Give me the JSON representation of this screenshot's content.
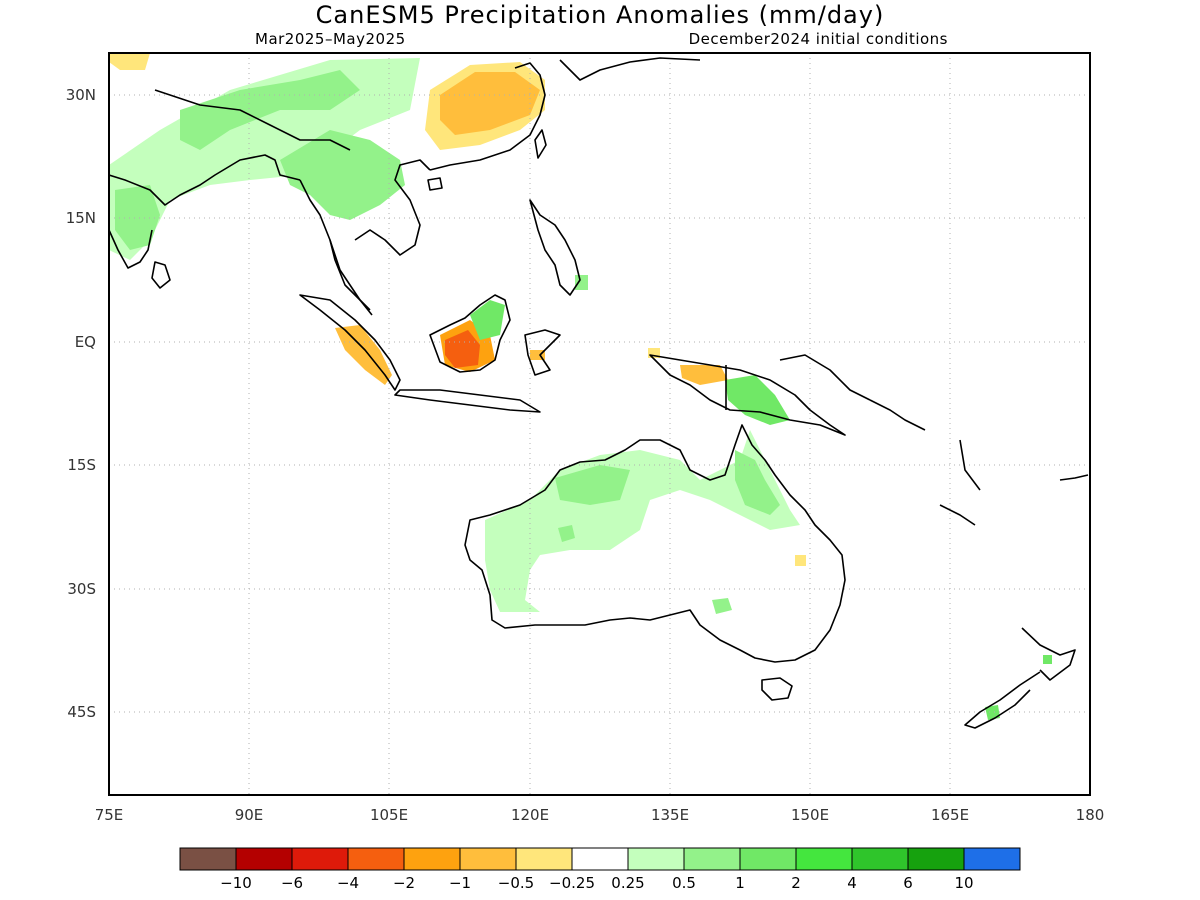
{
  "title": "CanESM5 Precipitation Anomalies (mm/day)",
  "subtitle_left": "Mar2025–May2025",
  "subtitle_right": "December2024 initial conditions",
  "map": {
    "lon_range": [
      75,
      180
    ],
    "lat_range": [
      -55,
      35
    ],
    "lon_ticks": [
      "75E",
      "90E",
      "105E",
      "120E",
      "135E",
      "150E",
      "165E",
      "180"
    ],
    "lat_ticks": [
      "30N",
      "15N",
      "EQ",
      "15S",
      "30S",
      "45S"
    ],
    "grid": "dotted"
  },
  "colorbar": {
    "colors": [
      "#7a5044",
      "#b40000",
      "#de1a0a",
      "#f55f0f",
      "#fea20f",
      "#ffbe3c",
      "#ffe67b",
      "#ffffff",
      "#c4ffbd",
      "#93f28a",
      "#70e866",
      "#44e63e",
      "#2fc52b",
      "#16a20e",
      "#1e6fe8"
    ],
    "labels": [
      "−10",
      "−6",
      "−4",
      "−2",
      "−1",
      "−0.5",
      "−0.25",
      "0.25",
      "0.5",
      "1",
      "2",
      "4",
      "6",
      "10"
    ]
  }
}
